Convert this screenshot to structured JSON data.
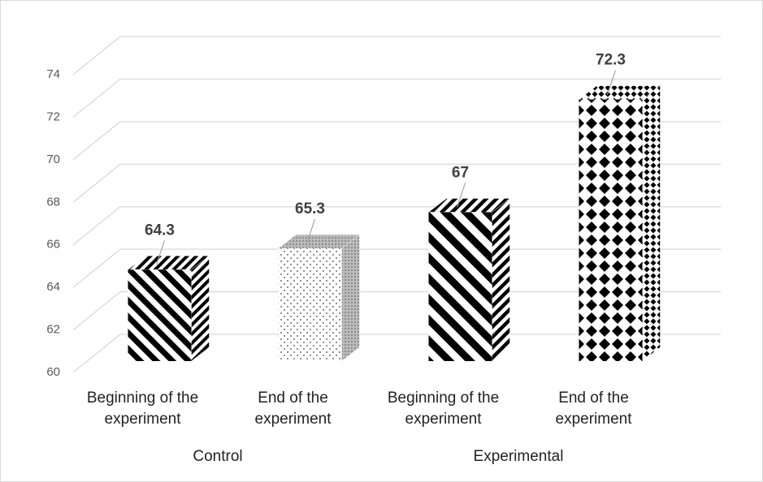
{
  "chart_data": {
    "type": "bar3d",
    "categories": [
      "Beginning of the experiment",
      "End of the experiment",
      "Beginning of the experiment",
      "End of the experiment"
    ],
    "groups": [
      "Control",
      "Experimental"
    ],
    "values": [
      64.3,
      65.3,
      67,
      72.3
    ],
    "ylim": [
      60,
      74
    ],
    "yticks": [
      60,
      62,
      64,
      66,
      68,
      70,
      72,
      74
    ],
    "grid": true
  }
}
